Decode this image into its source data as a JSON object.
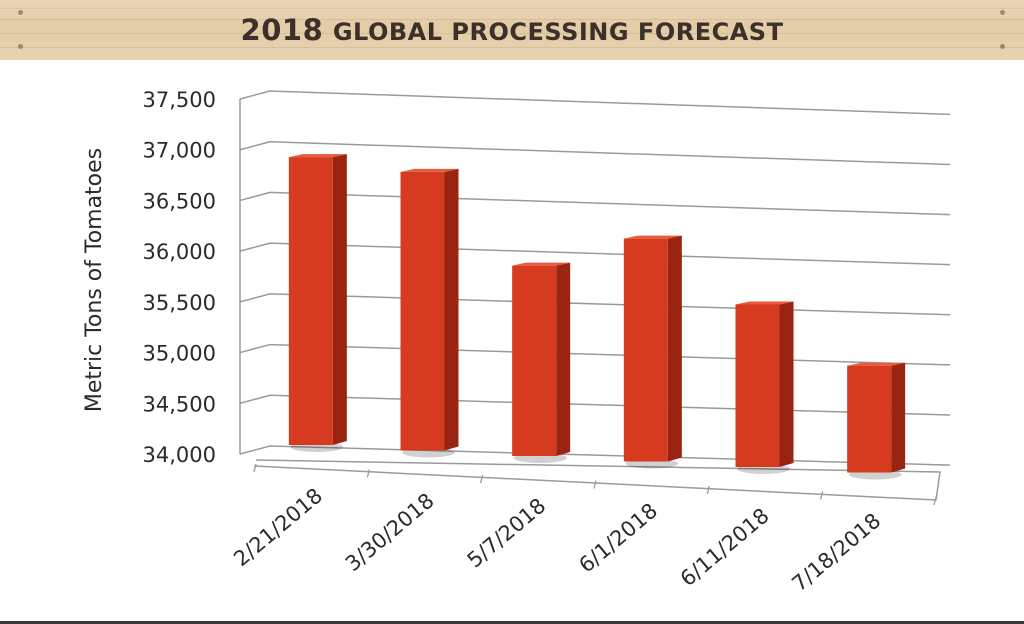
{
  "banner": {
    "year": "2018",
    "title_rest": "GLOBAL PROCESSING FORECAST"
  },
  "colors": {
    "bar_front": "#d63a1f",
    "bar_side": "#9a2412",
    "bar_top": "#e85a3c",
    "grid": "#9a9a9a"
  },
  "chart_data": {
    "type": "bar",
    "title": "2018 GLOBAL PROCESSING FORECAST",
    "ylabel": "Metric Tons of Tomatoes",
    "xlabel": "",
    "ylim": [
      34000,
      37500
    ],
    "yticks": [
      "34,000",
      "34,500",
      "35,000",
      "35,500",
      "36,000",
      "36,500",
      "37,000",
      "37,500"
    ],
    "ytick_values": [
      34000,
      34500,
      35000,
      35500,
      36000,
      36500,
      37000,
      37500
    ],
    "categories": [
      "2/21/2018",
      "3/30/2018",
      "5/7/2018",
      "6/1/2018",
      "6/11/2018",
      "7/18/2018"
    ],
    "values": [
      37100,
      37000,
      36050,
      36400,
      35750,
      35150
    ],
    "grid": true,
    "legend": "none"
  }
}
